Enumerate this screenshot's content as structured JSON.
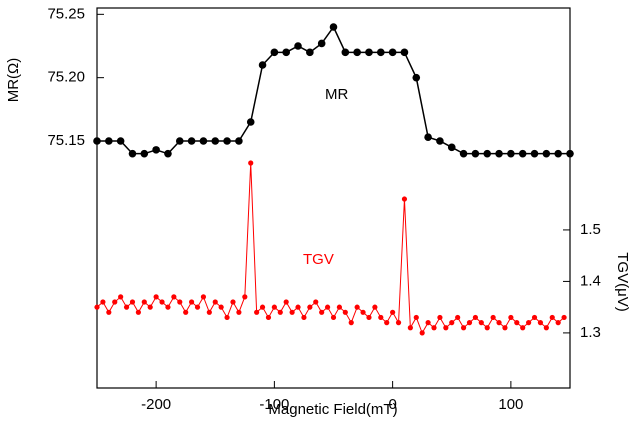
{
  "chart_data": {
    "type": "line",
    "x_label": "Magnetic Field(mT)",
    "y_label": "MR(Ω)",
    "y2_label": "TGV(μV)",
    "xlim": [
      -250,
      150
    ],
    "xticks": [
      -200,
      -100,
      0,
      100
    ],
    "ylim": [
      74.955,
      75.255
    ],
    "yticks": [
      {
        "value": 75.15,
        "label": "75.15"
      },
      {
        "value": 75.2,
        "label": "75.20"
      },
      {
        "value": 75.25,
        "label": "75.25"
      }
    ],
    "y2lim": [
      1.193,
      1.931
    ],
    "y2ticks": [
      1.3,
      1.4,
      1.5
    ],
    "series": [
      {
        "name": "MR",
        "color": "#000000",
        "axis": "y",
        "x": [
          -250,
          -240,
          -230,
          -220,
          -210,
          -200,
          -190,
          -180,
          -170,
          -160,
          -150,
          -140,
          -130,
          -120,
          -110,
          -100,
          -90,
          -80,
          -70,
          -60,
          -50,
          -40,
          -30,
          -20,
          -10,
          0,
          10,
          20,
          30,
          40,
          50,
          60,
          70,
          80,
          90,
          100,
          110,
          120,
          130,
          140,
          150
        ],
        "values": [
          75.15,
          75.15,
          75.15,
          75.14,
          75.14,
          75.143,
          75.14,
          75.15,
          75.15,
          75.15,
          75.15,
          75.15,
          75.15,
          75.165,
          75.21,
          75.22,
          75.22,
          75.225,
          75.22,
          75.227,
          75.24,
          75.22,
          75.22,
          75.22,
          75.22,
          75.22,
          75.22,
          75.2,
          75.153,
          75.15,
          75.145,
          75.14,
          75.14,
          75.14,
          75.14,
          75.14,
          75.14,
          75.14,
          75.14,
          75.14,
          75.14
        ]
      },
      {
        "name": "TGV",
        "color": "#ff0000",
        "axis": "y2",
        "x": [
          -250,
          -245,
          -240,
          -235,
          -230,
          -225,
          -220,
          -215,
          -210,
          -205,
          -200,
          -195,
          -190,
          -185,
          -180,
          -175,
          -170,
          -165,
          -160,
          -155,
          -150,
          -145,
          -140,
          -135,
          -130,
          -125,
          -120,
          -115,
          -110,
          -105,
          -100,
          -95,
          -90,
          -85,
          -80,
          -75,
          -70,
          -65,
          -60,
          -55,
          -50,
          -45,
          -40,
          -35,
          -30,
          -25,
          -20,
          -15,
          -10,
          -5,
          0,
          5,
          10,
          15,
          20,
          25,
          30,
          35,
          40,
          45,
          50,
          55,
          60,
          65,
          70,
          75,
          80,
          85,
          90,
          95,
          100,
          105,
          110,
          115,
          120,
          125,
          130,
          135,
          140,
          145
        ],
        "values": [
          1.35,
          1.36,
          1.34,
          1.36,
          1.37,
          1.35,
          1.36,
          1.34,
          1.36,
          1.35,
          1.37,
          1.36,
          1.35,
          1.37,
          1.36,
          1.34,
          1.36,
          1.35,
          1.37,
          1.34,
          1.36,
          1.35,
          1.33,
          1.36,
          1.34,
          1.37,
          1.63,
          1.34,
          1.35,
          1.33,
          1.35,
          1.34,
          1.36,
          1.34,
          1.35,
          1.33,
          1.35,
          1.36,
          1.34,
          1.35,
          1.33,
          1.35,
          1.34,
          1.32,
          1.35,
          1.34,
          1.33,
          1.35,
          1.33,
          1.32,
          1.34,
          1.32,
          1.56,
          1.31,
          1.33,
          1.3,
          1.32,
          1.31,
          1.33,
          1.31,
          1.32,
          1.33,
          1.31,
          1.32,
          1.33,
          1.32,
          1.31,
          1.33,
          1.32,
          1.31,
          1.33,
          1.32,
          1.31,
          1.32,
          1.33,
          1.32,
          1.31,
          1.33,
          1.32,
          1.33
        ]
      }
    ]
  }
}
